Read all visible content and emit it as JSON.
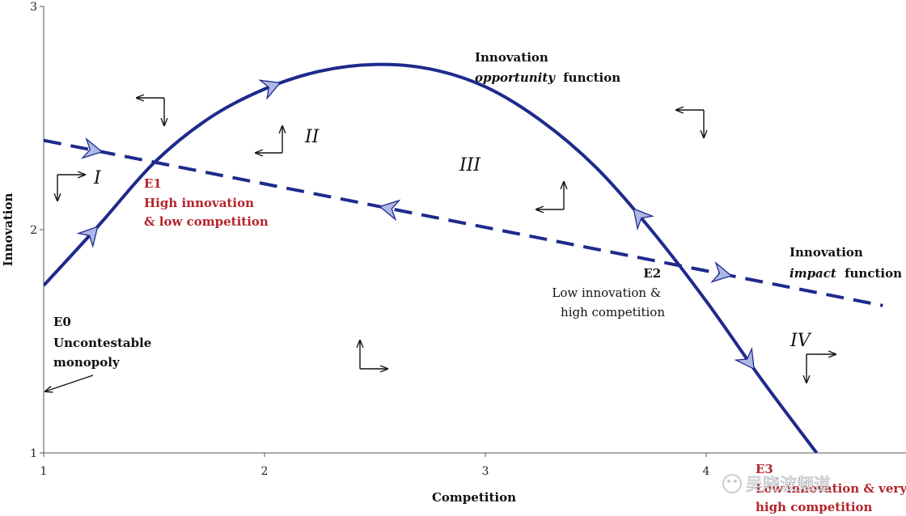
{
  "chart_data": {
    "type": "line",
    "xlabel": "Competition",
    "ylabel": "Innovation",
    "xlim": [
      1,
      4.8
    ],
    "ylim": [
      1,
      3
    ],
    "x_ticks": [
      "1",
      "2",
      "3",
      "4"
    ],
    "y_ticks": [
      "1",
      "2",
      "3"
    ],
    "series": [
      {
        "name_lines": [
          "Innovation",
          "opportunity",
          "function"
        ],
        "style": "solid",
        "color": "#1f2a8c",
        "x": [
          1.0,
          1.25,
          1.5,
          1.75,
          2.0,
          2.25,
          2.5,
          2.75,
          3.0,
          3.25,
          3.5,
          3.75,
          4.0,
          4.25,
          4.5
        ],
        "y": [
          1.75,
          2.02,
          2.3,
          2.5,
          2.63,
          2.71,
          2.74,
          2.72,
          2.64,
          2.49,
          2.28,
          2.0,
          1.68,
          1.33,
          1.0
        ]
      },
      {
        "name_lines": [
          "Innovation",
          "impact",
          "function"
        ],
        "style": "dashed",
        "color": "#1f2a8c",
        "x": [
          1.0,
          4.8
        ],
        "y": [
          2.4,
          1.66
        ]
      }
    ],
    "regions": [
      "I",
      "II",
      "III",
      "IV"
    ],
    "equilibria": [
      {
        "id": "E0",
        "lines": [
          "Uncontestable",
          "monopoly"
        ]
      },
      {
        "id": "E1",
        "lines": [
          "High innovation",
          "& low competition"
        ]
      },
      {
        "id": "E2",
        "lines": [
          "Low innovation &",
          "high competition"
        ]
      },
      {
        "id": "E3",
        "lines": [
          "Low innovation & very",
          "high competition"
        ]
      }
    ]
  },
  "watermark": "吴晓波频道"
}
